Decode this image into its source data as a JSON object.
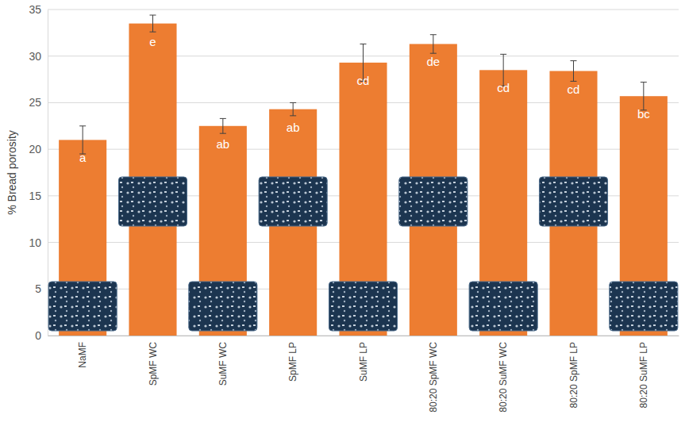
{
  "chart_data": {
    "type": "bar",
    "y_label": "% Bread porosity",
    "categories": [
      "NaMF",
      "SpMF WC",
      "SuMF WC",
      "SpMF LP",
      "SuMF LP",
      "80:20 SpMF WC",
      "80:20 SuMF WC",
      "80:20 SpMF LP",
      "80:20 SuMF LP"
    ],
    "values": [
      21.0,
      33.5,
      22.5,
      24.3,
      29.3,
      31.3,
      28.5,
      28.4,
      25.7
    ],
    "errors": [
      1.5,
      0.9,
      0.8,
      0.7,
      2.0,
      1.0,
      1.7,
      1.1,
      1.5
    ],
    "annotations": [
      "a",
      "e",
      "ab",
      "ab",
      "cd",
      "de",
      "cd",
      "cd",
      "bc"
    ],
    "color": "#ed7d31",
    "ylim": [
      0,
      35
    ],
    "yticks": [
      0,
      5,
      10,
      15,
      20,
      25,
      30,
      35
    ],
    "grid": true
  }
}
